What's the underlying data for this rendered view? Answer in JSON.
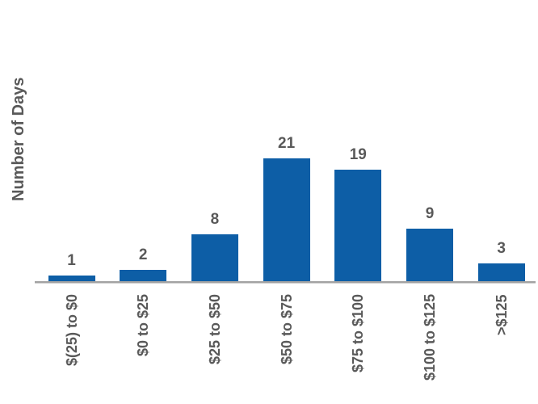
{
  "chart_data": {
    "type": "bar",
    "title": "",
    "categories": [
      "$(25) to $0",
      "$0 to $25",
      "$25 to $50",
      "$50 to $75",
      "$75 to $100",
      "$100 to $125",
      ">$125"
    ],
    "values": [
      1,
      2,
      8,
      21,
      19,
      9,
      3
    ],
    "xlabel": "",
    "ylabel": "Number of Days",
    "ylim": [
      0,
      22
    ],
    "grid": false,
    "legend_position": "none",
    "y_axis_ticks_visible": false,
    "data_labels_shown": true,
    "x_tick_label_rotation_degrees": 90,
    "colors": {
      "bar": "#0D5EA6",
      "text": "#595959",
      "axis_line": "#A3A3A3"
    }
  }
}
